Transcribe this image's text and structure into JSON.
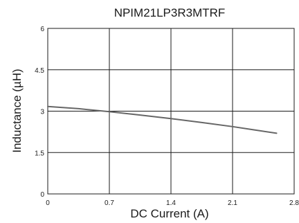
{
  "chart_data": {
    "type": "line",
    "title": "NPIM21LP3R3MTRF",
    "xlabel": "DC Current (A)",
    "ylabel": "Inductance (µH)",
    "xlim": [
      0,
      2.8
    ],
    "ylim": [
      0,
      6
    ],
    "xticks": [
      "0",
      "0.7",
      "1.4",
      "2.1",
      "2.8"
    ],
    "yticks": [
      "0",
      "1.5",
      "3",
      "4.5",
      "6"
    ],
    "grid": true,
    "legend": "none",
    "series": [
      {
        "color": "#666666",
        "x": [
          0,
          0.35,
          0.7,
          1.05,
          1.4,
          1.75,
          2.1,
          2.35,
          2.6
        ],
        "y": [
          3.17,
          3.09,
          2.98,
          2.86,
          2.73,
          2.59,
          2.44,
          2.32,
          2.2
        ]
      }
    ]
  }
}
